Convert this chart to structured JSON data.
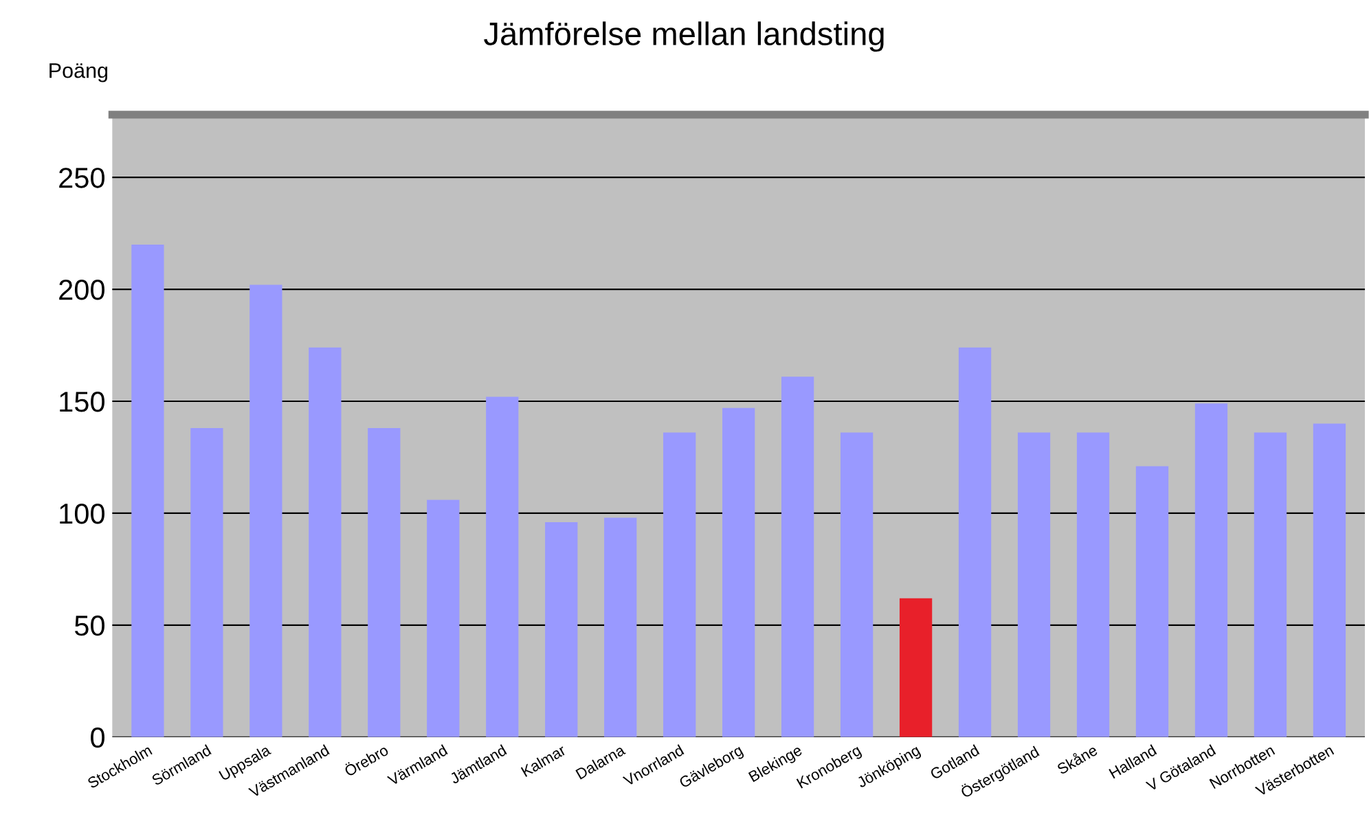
{
  "chart_data": {
    "type": "bar",
    "title": "Jämförelse mellan landsting",
    "ylabel": "Poäng",
    "categories": [
      "Stockholm",
      "Sörmland",
      "Uppsala",
      "Västmanland",
      "Örebro",
      "Värmland",
      "Jämtland",
      "Kalmar",
      "Dalarna",
      "Vnorrland",
      "Gävleborg",
      "Blekinge",
      "Kronoberg",
      "Jönköping",
      "Gotland",
      "Östergötland",
      "Skåne",
      "Halland",
      "V Götaland",
      "Norrbotten",
      "Västerbotten"
    ],
    "values": [
      220,
      138,
      202,
      174,
      138,
      106,
      152,
      96,
      98,
      136,
      147,
      161,
      136,
      62,
      174,
      136,
      136,
      121,
      149,
      136,
      140
    ],
    "colors": [
      "#9999ff",
      "#9999ff",
      "#9999ff",
      "#9999ff",
      "#9999ff",
      "#9999ff",
      "#9999ff",
      "#9999ff",
      "#9999ff",
      "#9999ff",
      "#9999ff",
      "#9999ff",
      "#9999ff",
      "#e8202a",
      "#9999ff",
      "#9999ff",
      "#9999ff",
      "#9999ff",
      "#9999ff",
      "#9999ff",
      "#9999ff"
    ],
    "ylim": [
      0,
      278
    ],
    "yticks": [
      0,
      50,
      100,
      150,
      200,
      250
    ],
    "grid": "y",
    "legend": false
  }
}
